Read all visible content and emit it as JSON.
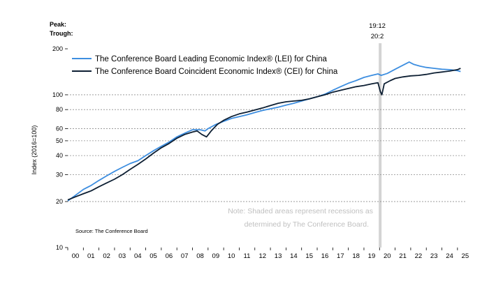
{
  "header": {
    "peak_label": "Peak:",
    "trough_label": "Trough:"
  },
  "recession": {
    "peak": "19:12",
    "trough": "20:2",
    "start_year": 2019.95,
    "end_year": 2020.12,
    "color": "#d3d3d3"
  },
  "note": {
    "line1": "Note: Shaded areas represent recessions as",
    "line2": "determined by The Conference Board."
  },
  "source": "Source: The Conference Board",
  "chart_data": {
    "type": "line",
    "title": "",
    "ylabel": "Index (2016=100)",
    "xlabel": "",
    "y_scale": "log",
    "ylim": [
      10,
      200
    ],
    "y_ticks": [
      10,
      20,
      30,
      40,
      50,
      60,
      80,
      100,
      200
    ],
    "xlim": [
      2000,
      2025.5
    ],
    "x_tick_labels": [
      "00",
      "01",
      "02",
      "03",
      "04",
      "05",
      "06",
      "07",
      "08",
      "09",
      "10",
      "11",
      "12",
      "13",
      "14",
      "15",
      "16",
      "17",
      "18",
      "19",
      "20",
      "21",
      "22",
      "23",
      "24",
      "25"
    ],
    "gridlines": "dashed horizontal",
    "legend_position": "top-left",
    "series": [
      {
        "name": "The Conference Board Leading Economic Index® (LEI) for China",
        "color": "#3d8ee0",
        "x": [
          2000,
          2000.5,
          2001,
          2001.5,
          2002,
          2002.5,
          2003,
          2003.5,
          2004,
          2004.5,
          2005,
          2005.5,
          2006,
          2006.5,
          2007,
          2007.5,
          2008,
          2008.5,
          2008.8,
          2009,
          2009.5,
          2010,
          2010.5,
          2011,
          2011.5,
          2012,
          2012.5,
          2013,
          2013.5,
          2014,
          2014.5,
          2015,
          2015.5,
          2016,
          2016.5,
          2017,
          2017.5,
          2018,
          2018.5,
          2019,
          2019.5,
          2019.9,
          2020.1,
          2020.5,
          2021,
          2021.5,
          2021.9,
          2022.2,
          2022.6,
          2023,
          2023.5,
          2024,
          2024.5,
          2025,
          2025.2
        ],
        "y": [
          20.2,
          22.0,
          24.0,
          25.5,
          27.5,
          29.5,
          31.5,
          33.5,
          35.5,
          37.0,
          40.0,
          43.0,
          46.0,
          49.0,
          53.0,
          56.0,
          59.0,
          59.0,
          58.0,
          60.0,
          64.0,
          67.0,
          70.0,
          72.0,
          74.0,
          76.5,
          79.0,
          81.0,
          83.0,
          85.5,
          88.0,
          91.0,
          94.0,
          97.0,
          101.0,
          107.0,
          113.0,
          119.0,
          124.0,
          130.0,
          134.0,
          137.0,
          134.0,
          138.0,
          147.0,
          156.0,
          164.0,
          158.0,
          154.0,
          151.0,
          149.0,
          147.0,
          146.0,
          144.0,
          142.0
        ]
      },
      {
        "name": "The Conference Board Coincident Economic Index® (CEI) for China",
        "color": "#0d1f33",
        "x": [
          2000,
          2000.5,
          2001,
          2001.5,
          2002,
          2002.5,
          2003,
          2003.5,
          2004,
          2004.5,
          2005,
          2005.5,
          2006,
          2006.5,
          2007,
          2007.5,
          2008,
          2008.3,
          2008.6,
          2008.9,
          2009.2,
          2009.6,
          2010,
          2010.5,
          2011,
          2011.5,
          2012,
          2012.5,
          2013,
          2013.5,
          2014,
          2014.5,
          2015,
          2015.5,
          2016,
          2016.5,
          2017,
          2017.5,
          2018,
          2018.5,
          2019,
          2019.5,
          2019.9,
          2020.05,
          2020.15,
          2020.3,
          2020.7,
          2021,
          2021.5,
          2022,
          2022.5,
          2023,
          2023.5,
          2024,
          2024.5,
          2025,
          2025.2
        ],
        "y": [
          20.5,
          21.5,
          22.5,
          23.5,
          25.0,
          26.5,
          28.0,
          30.0,
          32.5,
          35.0,
          38.0,
          41.5,
          45.0,
          48.0,
          52.0,
          55.0,
          57.0,
          58.0,
          55.0,
          53.0,
          58.0,
          64.0,
          68.0,
          72.0,
          75.0,
          77.0,
          79.5,
          82.0,
          85.0,
          88.0,
          90.0,
          91.0,
          92.0,
          94.0,
          97.0,
          100.0,
          104.0,
          107.0,
          110.0,
          113.0,
          115.0,
          118.0,
          120.0,
          105.0,
          100.0,
          118.0,
          124.0,
          128.0,
          131.0,
          133.0,
          134.0,
          136.0,
          139.0,
          141.0,
          143.0,
          146.0,
          149.0
        ]
      }
    ]
  }
}
